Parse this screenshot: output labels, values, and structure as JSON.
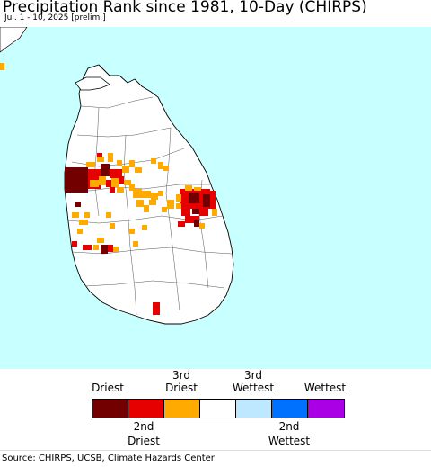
{
  "title": "Precipitation Rank since 1981, 10-Day (CHIRPS)",
  "subtitle": "Jul. 1 - 10, 2025 [prelim.]",
  "colors": {
    "ocean": "#c8ffff",
    "land": "#ffffff",
    "driest": "#730000",
    "second_driest": "#e60000",
    "third_driest": "#ffaa00",
    "normal": "#ffffff",
    "third_wettest": "#bee8ff",
    "second_wettest": "#0070ff",
    "wettest": "#a900e6"
  },
  "legend": {
    "top_labels": [
      "Driest",
      "3rd\nDriest",
      "3rd\nWettest",
      "Wettest"
    ],
    "bottom_labels": [
      "2nd\nDriest",
      "2nd\nWettest"
    ],
    "swatches": [
      "driest",
      "second_driest",
      "third_driest",
      "normal",
      "third_wettest",
      "second_wettest",
      "wettest"
    ]
  },
  "source": "Source: CHIRPS, UCSB, Climate Hazards Center"
}
